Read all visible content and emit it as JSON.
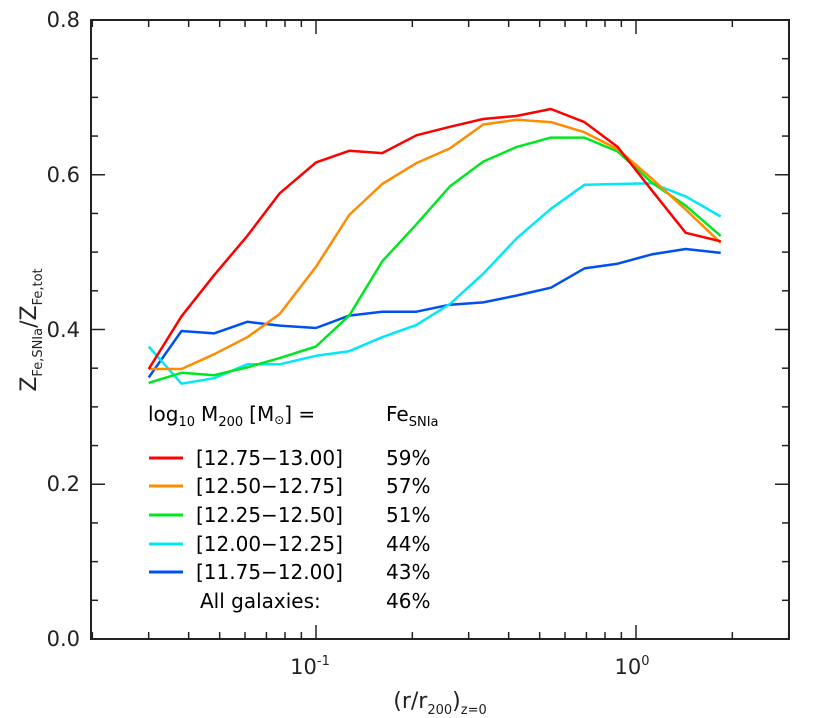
{
  "chart_data": {
    "type": "line",
    "title": "",
    "xlabel": "(r/r_200)_z=0",
    "ylabel": "Z_Fe,SNIa / Z_Fe,tot",
    "xscale": "log",
    "xlim": [
      0.02,
      3.3
    ],
    "ylim": [
      0.0,
      0.8
    ],
    "x_tick_labels": [
      "10^-1",
      "10^0"
    ],
    "y_tick_labels": [
      "0.0",
      "0.2",
      "0.4",
      "0.6",
      "0.8"
    ],
    "grid": false,
    "legend_position": "lower-left (inside plot)",
    "x": [
      0.03,
      0.038,
      0.048,
      0.061,
      0.077,
      0.1,
      0.127,
      0.161,
      0.206,
      0.262,
      0.333,
      0.424,
      0.542,
      0.69,
      0.876,
      1.12,
      1.43,
      1.84
    ],
    "series": [
      {
        "name": "[12.75-13.00]",
        "color": "#ff0000",
        "fe_snia": "59%",
        "values": [
          0.349,
          0.417,
          0.47,
          0.521,
          0.576,
          0.616,
          0.631,
          0.628,
          0.651,
          0.662,
          0.672,
          0.676,
          0.685,
          0.668,
          0.636,
          0.58,
          0.525,
          0.514
        ]
      },
      {
        "name": "[12.50-12.75]",
        "color": "#ff8c00",
        "fe_snia": "57%",
        "values": [
          0.349,
          0.349,
          0.368,
          0.39,
          0.42,
          0.481,
          0.548,
          0.588,
          0.615,
          0.634,
          0.665,
          0.671,
          0.668,
          0.655,
          0.633,
          0.595,
          0.555,
          0.512
        ]
      },
      {
        "name": "[12.25-12.50]",
        "color": "#00e620",
        "fe_snia": "51%",
        "values": [
          0.331,
          0.344,
          0.341,
          0.351,
          0.363,
          0.378,
          0.418,
          0.488,
          0.536,
          0.585,
          0.617,
          0.636,
          0.648,
          0.648,
          0.63,
          0.59,
          0.56,
          0.521
        ]
      },
      {
        "name": "[12.00-12.25]",
        "color": "#00e8f8",
        "fe_snia": "44%",
        "values": [
          0.378,
          0.33,
          0.337,
          0.355,
          0.355,
          0.366,
          0.372,
          0.39,
          0.406,
          0.433,
          0.472,
          0.518,
          0.556,
          0.587,
          0.588,
          0.589,
          0.572,
          0.546
        ]
      },
      {
        "name": "[11.75-12.00]",
        "color": "#0050f0",
        "fe_snia": "43%",
        "values": [
          0.338,
          0.398,
          0.395,
          0.41,
          0.405,
          0.402,
          0.418,
          0.423,
          0.423,
          0.432,
          0.435,
          0.444,
          0.454,
          0.479,
          0.485,
          0.497,
          0.504,
          0.499
        ]
      }
    ],
    "legend": {
      "header_left": "log10 M200 [M_sun] =",
      "header_right": "Fe_SNIa",
      "all_galaxies_label": "All galaxies:",
      "all_galaxies_value": "46%"
    }
  },
  "axes": {
    "x_label_main": "(r/r",
    "x_label_sub": "200",
    "x_label_close": ")",
    "x_label_sub2": "z=0",
    "y_label_main1": "Z",
    "y_label_sub1": "Fe,SNIa",
    "y_label_slash": "/",
    "y_label_main2": "Z",
    "y_label_sub2": "Fe,tot",
    "x_ticks": [
      {
        "base": "10",
        "exp": "-1"
      },
      {
        "base": "10",
        "exp": "0"
      }
    ],
    "y_ticks": [
      "0.0",
      "0.2",
      "0.4",
      "0.6",
      "0.8"
    ]
  },
  "legend": {
    "header_log": "log",
    "header_log_sub": "10",
    "header_m": "M",
    "header_m_sub": "200",
    "header_unit_open": "[M",
    "header_unit_close": "] =",
    "header_fe": "Fe",
    "header_fe_sub": "SNIa",
    "rows": [
      {
        "range": "[12.75−13.00]",
        "pct": "59%",
        "color": "#ff0000"
      },
      {
        "range": "[12.50−12.75]",
        "pct": "57%",
        "color": "#ff8c00"
      },
      {
        "range": "[12.25−12.50]",
        "pct": "51%",
        "color": "#00e620"
      },
      {
        "range": "[12.00−12.25]",
        "pct": "44%",
        "color": "#00e8f8"
      },
      {
        "range": "[11.75−12.00]",
        "pct": "43%",
        "color": "#0050f0"
      }
    ],
    "all_label": "All galaxies:",
    "all_pct": "46%"
  }
}
